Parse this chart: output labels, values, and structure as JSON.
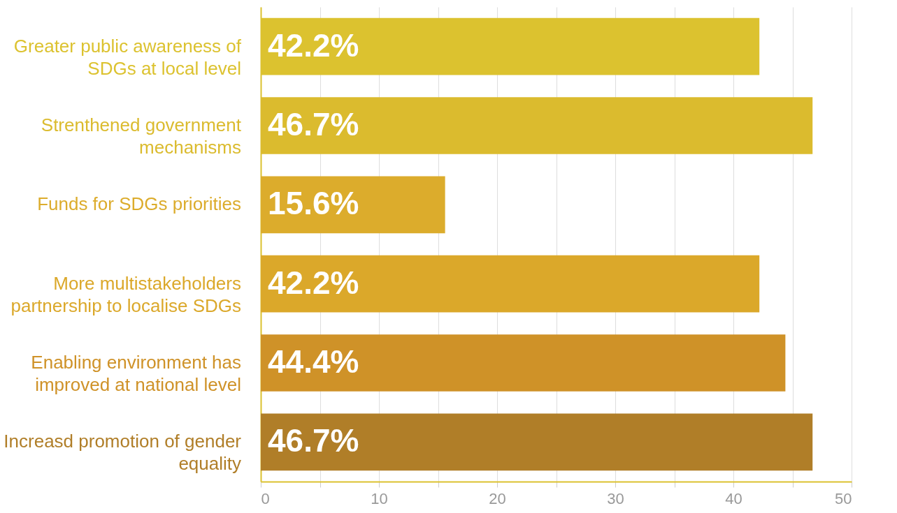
{
  "chart_data": {
    "type": "bar",
    "orientation": "horizontal",
    "categories": [
      "Greater public awareness of SDGs at local level",
      "Strenthened government mechanisms",
      "Funds for SDGs priorities",
      "More multistakeholders partnership to localise SDGs",
      "Enabling environment has improved at national  level",
      "Increasd promotion of gender equality"
    ],
    "values": [
      42.2,
      46.7,
      15.6,
      42.2,
      44.4,
      46.7
    ],
    "colors": [
      "#dcc22f",
      "#dbbb2e",
      "#dcac2c",
      "#dba82a",
      "#cf9228",
      "#b07e28"
    ],
    "xlim": [
      0,
      50
    ],
    "xticks": [
      0,
      {
        "value": 5,
        "label": null
      },
      10,
      {
        "value": 15,
        "label": null
      },
      20,
      {
        "value": 25,
        "label": null
      },
      30,
      {
        "value": 35,
        "label": null
      },
      40,
      {
        "value": 45,
        "label": null
      },
      50
    ],
    "value_labels": [
      "42.2%",
      "46.7%",
      "15.6%",
      "42.2%",
      "44.4%",
      "46.7%"
    ],
    "grid": "x",
    "legend": false
  }
}
